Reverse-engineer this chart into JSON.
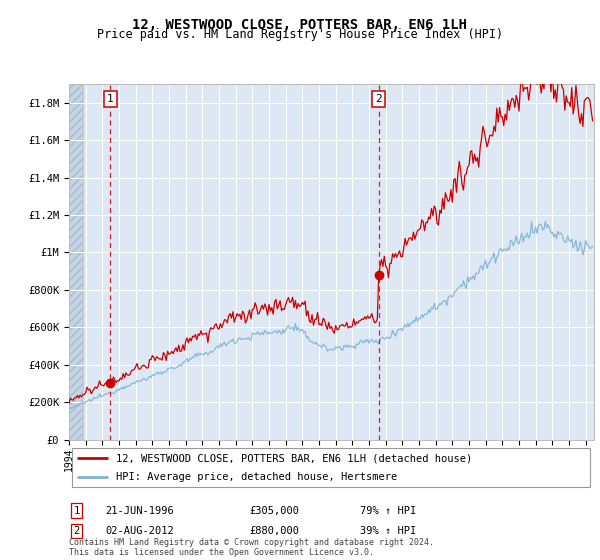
{
  "title": "12, WESTWOOD CLOSE, POTTERS BAR, EN6 1LH",
  "subtitle": "Price paid vs. HM Land Registry's House Price Index (HPI)",
  "ylabel_ticks": [
    "£0",
    "£200K",
    "£400K",
    "£600K",
    "£800K",
    "£1M",
    "£1.2M",
    "£1.4M",
    "£1.6M",
    "£1.8M"
  ],
  "ytick_values": [
    0,
    200000,
    400000,
    600000,
    800000,
    1000000,
    1200000,
    1400000,
    1600000,
    1800000
  ],
  "ylim": [
    0,
    1900000
  ],
  "xlim_start": 1994.0,
  "xlim_end": 2025.5,
  "sale1_date": 1996.47,
  "sale1_price": 305000,
  "sale2_date": 2012.58,
  "sale2_price": 880000,
  "line_color_red": "#cc0000",
  "line_color_blue": "#7fb3d3",
  "marker_color": "#cc0000",
  "dashed_color": "#cc0000",
  "background_plot": "#dde8f4",
  "background_hatch": "#c5d5e5",
  "grid_color": "#ffffff",
  "legend_line1": "12, WESTWOOD CLOSE, POTTERS BAR, EN6 1LH (detached house)",
  "legend_line2": "HPI: Average price, detached house, Hertsmere",
  "table_row1": [
    "1",
    "21-JUN-1996",
    "£305,000",
    "79% ↑ HPI"
  ],
  "table_row2": [
    "2",
    "02-AUG-2012",
    "£880,000",
    "39% ↑ HPI"
  ],
  "footnote": "Contains HM Land Registry data © Crown copyright and database right 2024.\nThis data is licensed under the Open Government Licence v3.0.",
  "title_fontsize": 10,
  "subtitle_fontsize": 8.5
}
